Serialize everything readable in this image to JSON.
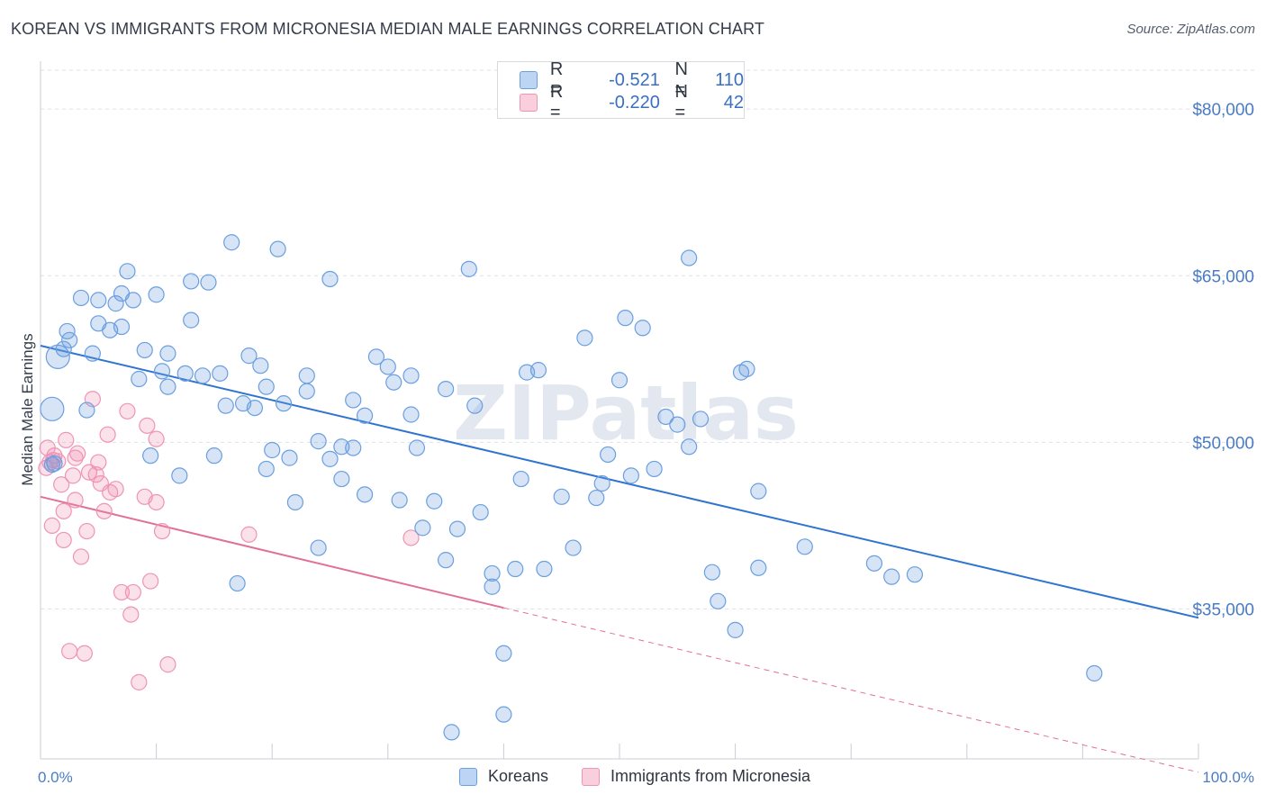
{
  "header": {
    "title": "KOREAN VS IMMIGRANTS FROM MICRONESIA MEDIAN MALE EARNINGS CORRELATION CHART",
    "source": "Source: ZipAtlas.com"
  },
  "watermark": "ZIPatlas",
  "legend": {
    "rows": [
      {
        "r_label": "R =",
        "r_value": "-0.521",
        "n_label": "N =",
        "n_value": "110"
      },
      {
        "r_label": "R =",
        "r_value": "-0.220",
        "n_label": "N =",
        "n_value": "42"
      }
    ]
  },
  "chart_data": {
    "type": "scatter",
    "title": "KOREAN VS IMMIGRANTS FROM MICRONESIA MEDIAN MALE EARNINGS CORRELATION CHART",
    "xlabel": "",
    "ylabel": "Median Male Earnings",
    "xlim": [
      0,
      100
    ],
    "ylim": [
      21500,
      83500
    ],
    "x_tick_labels": [
      "0.0%",
      "100.0%"
    ],
    "y_ticks": [
      35000,
      50000,
      65000,
      80000
    ],
    "y_tick_labels": [
      "$35,000",
      "$50,000",
      "$65,000",
      "$80,000"
    ],
    "colors": {
      "koreans": "#6a9fe0",
      "micronesia": "#ef94b4",
      "koreans_line": "#2e74d0",
      "micronesia_line": "#e07098"
    },
    "series": [
      {
        "name": "Koreans",
        "regression": {
          "x": [
            0,
            100
          ],
          "y": [
            58700,
            34200
          ]
        },
        "points": [
          [
            1,
            48000
          ],
          [
            1,
            53000
          ],
          [
            1.5,
            57700
          ],
          [
            2,
            58400
          ],
          [
            2.3,
            60000
          ],
          [
            2.5,
            59200
          ],
          [
            3.5,
            63000
          ],
          [
            4,
            52900
          ],
          [
            4.5,
            58000
          ],
          [
            5,
            62800
          ],
          [
            5,
            60700
          ],
          [
            6,
            60100
          ],
          [
            6.5,
            62500
          ],
          [
            7,
            63400
          ],
          [
            7,
            60400
          ],
          [
            7.5,
            65400
          ],
          [
            8,
            62800
          ],
          [
            8.5,
            55700
          ],
          [
            9,
            58300
          ],
          [
            9.5,
            48800
          ],
          [
            10,
            63300
          ],
          [
            10.5,
            56400
          ],
          [
            11,
            55000
          ],
          [
            11,
            58000
          ],
          [
            12,
            47000
          ],
          [
            12.5,
            56200
          ],
          [
            13,
            64500
          ],
          [
            13,
            61000
          ],
          [
            14,
            56000
          ],
          [
            14.5,
            64400
          ],
          [
            15,
            48800
          ],
          [
            15.5,
            56200
          ],
          [
            16,
            53300
          ],
          [
            16.5,
            68000
          ],
          [
            17,
            37300
          ],
          [
            17.5,
            53500
          ],
          [
            18,
            57800
          ],
          [
            18.5,
            53100
          ],
          [
            19,
            56900
          ],
          [
            19.5,
            47600
          ],
          [
            19.5,
            55000
          ],
          [
            20,
            49300
          ],
          [
            20.5,
            67400
          ],
          [
            21,
            53500
          ],
          [
            21.5,
            48600
          ],
          [
            22,
            44600
          ],
          [
            23,
            54600
          ],
          [
            23,
            56000
          ],
          [
            24,
            40500
          ],
          [
            24,
            50100
          ],
          [
            25,
            48500
          ],
          [
            25,
            64700
          ],
          [
            26,
            49600
          ],
          [
            26,
            46700
          ],
          [
            27,
            49500
          ],
          [
            27,
            53800
          ],
          [
            28,
            45300
          ],
          [
            28,
            52400
          ],
          [
            29,
            57700
          ],
          [
            30,
            56800
          ],
          [
            30.5,
            55400
          ],
          [
            31,
            44800
          ],
          [
            32,
            52500
          ],
          [
            32,
            56000
          ],
          [
            32.5,
            49500
          ],
          [
            33,
            42300
          ],
          [
            34,
            44700
          ],
          [
            35,
            39400
          ],
          [
            35,
            54800
          ],
          [
            36,
            42200
          ],
          [
            37,
            65600
          ],
          [
            37.5,
            53300
          ],
          [
            38,
            43700
          ],
          [
            39,
            38200
          ],
          [
            39,
            37000
          ],
          [
            40,
            31000
          ],
          [
            40,
            25500
          ],
          [
            41,
            38600
          ],
          [
            41.5,
            46700
          ],
          [
            42,
            56300
          ],
          [
            43,
            56500
          ],
          [
            43.5,
            38600
          ],
          [
            45,
            45100
          ],
          [
            46,
            40500
          ],
          [
            47,
            59400
          ],
          [
            48,
            45000
          ],
          [
            48.5,
            46300
          ],
          [
            49,
            48900
          ],
          [
            50,
            55600
          ],
          [
            50.5,
            61200
          ],
          [
            51,
            47000
          ],
          [
            52,
            60300
          ],
          [
            53,
            47600
          ],
          [
            54,
            52300
          ],
          [
            55,
            51600
          ],
          [
            56,
            66600
          ],
          [
            56,
            49600
          ],
          [
            57,
            52100
          ],
          [
            58,
            38300
          ],
          [
            58.5,
            35700
          ],
          [
            60,
            33100
          ],
          [
            60.5,
            56300
          ],
          [
            61,
            56600
          ],
          [
            62,
            45600
          ],
          [
            62,
            38700
          ],
          [
            66,
            40600
          ],
          [
            72,
            39100
          ],
          [
            73.5,
            37900
          ],
          [
            75.5,
            38100
          ],
          [
            91,
            29200
          ],
          [
            35.5,
            23900
          ],
          [
            1.2,
            48100
          ]
        ]
      },
      {
        "name": "Immigrants from Micronesia",
        "regression": {
          "x": [
            0,
            40
          ],
          "y": [
            45100,
            35100
          ]
        },
        "regression_dashed": {
          "x": [
            40,
            100
          ],
          "y": [
            35100,
            20300
          ]
        },
        "points": [
          [
            0.5,
            47700
          ],
          [
            0.6,
            49500
          ],
          [
            0.8,
            48200
          ],
          [
            1,
            42500
          ],
          [
            1.2,
            48800
          ],
          [
            1.5,
            48300
          ],
          [
            1.8,
            46200
          ],
          [
            2,
            43800
          ],
          [
            2,
            41200
          ],
          [
            2.2,
            50200
          ],
          [
            2.5,
            31200
          ],
          [
            2.8,
            47000
          ],
          [
            3,
            44800
          ],
          [
            3,
            48600
          ],
          [
            3.2,
            49000
          ],
          [
            3.5,
            39700
          ],
          [
            3.8,
            31000
          ],
          [
            4,
            42000
          ],
          [
            4.2,
            47300
          ],
          [
            4.5,
            53900
          ],
          [
            4.8,
            47100
          ],
          [
            5,
            48200
          ],
          [
            5.2,
            46300
          ],
          [
            5.5,
            43800
          ],
          [
            5.8,
            50700
          ],
          [
            6,
            45500
          ],
          [
            6.5,
            45800
          ],
          [
            7,
            36500
          ],
          [
            7.5,
            52800
          ],
          [
            7.8,
            34500
          ],
          [
            8,
            36500
          ],
          [
            8.5,
            28400
          ],
          [
            9,
            45100
          ],
          [
            9.2,
            51500
          ],
          [
            9.5,
            37500
          ],
          [
            10,
            44600
          ],
          [
            10,
            50300
          ],
          [
            10.5,
            42000
          ],
          [
            11,
            30000
          ],
          [
            18,
            41700
          ],
          [
            32,
            41400
          ],
          [
            1.1,
            48400
          ]
        ]
      }
    ]
  },
  "bottom_legend": {
    "koreans_label": "Koreans",
    "micronesia_label": "Immigrants from Micronesia"
  }
}
